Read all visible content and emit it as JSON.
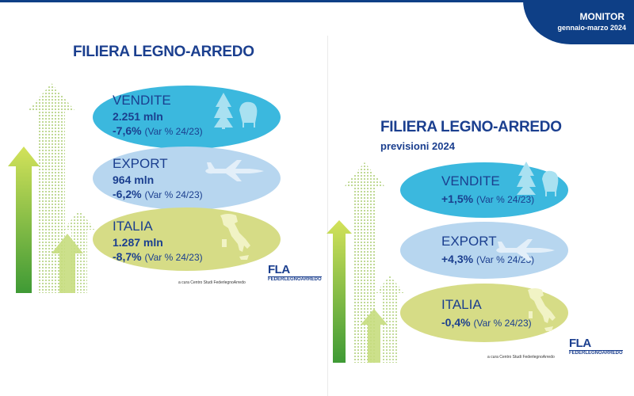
{
  "header": {
    "monitor": "MONITOR",
    "period": "gennaio-marzo 2024"
  },
  "left_panel": {
    "title": "FILIERA LEGNO-ARREDO",
    "cards": [
      {
        "label": "VENDITE",
        "value": "2.251 mln",
        "var": "-7,6%",
        "note": "(Var % 24/23)",
        "icon": "tree-armchair-icon"
      },
      {
        "label": "EXPORT",
        "value": "964 mln",
        "var": "-6,2%",
        "note": "(Var % 24/23)",
        "icon": "airplane-icon"
      },
      {
        "label": "ITALIA",
        "value": "1.287 mln",
        "var": "-8,7%",
        "note": "(Var % 24/23)",
        "icon": "italy-map-icon"
      }
    ],
    "credit": "a cura Centro Studi FederlegnoArredo"
  },
  "right_panel": {
    "title": "FILIERA LEGNO-ARREDO",
    "subtitle": "previsioni 2024",
    "cards": [
      {
        "label": "VENDITE",
        "var": "+1,5%",
        "note": "(Var % 24/23)",
        "icon": "tree-armchair-icon"
      },
      {
        "label": "EXPORT",
        "var": "+4,3%",
        "note": "(Var % 24/23)",
        "icon": "airplane-icon"
      },
      {
        "label": "ITALIA",
        "var": "-0,4%",
        "note": "(Var % 24/23)",
        "icon": "italy-map-icon"
      }
    ],
    "credit": "a cura Centro Studi FederlegnoArredo"
  },
  "logo": {
    "mark": "FLA",
    "name": "FEDERLEGNOARREDO"
  },
  "colors": {
    "brand": "#1b3f8f",
    "vendite": "#3bb8de",
    "export": "#b7d6ef",
    "italia": "#d6dc86",
    "arrow_green": "#7fb93a"
  }
}
